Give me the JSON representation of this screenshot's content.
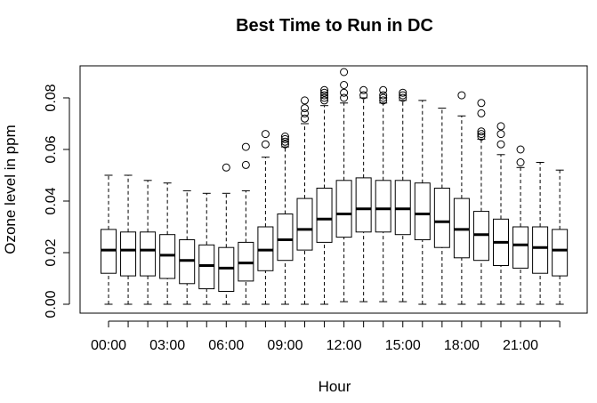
{
  "chart_data": {
    "type": "boxplot",
    "title": "Best Time to Run in DC",
    "xlabel": "Hour",
    "ylabel": "Ozone level in ppm",
    "ylim": [
      0,
      0.09
    ],
    "y_ticks": [
      0.0,
      0.02,
      0.04,
      0.06,
      0.08
    ],
    "y_tick_labels": [
      "0.00",
      "0.02",
      "0.04",
      "0.06",
      "0.08"
    ],
    "x_tick_labels": [
      {
        "hour": 0,
        "label": "00:00"
      },
      {
        "hour": 3,
        "label": "03:00"
      },
      {
        "hour": 6,
        "label": "06:00"
      },
      {
        "hour": 9,
        "label": "09:00"
      },
      {
        "hour": 12,
        "label": "12:00"
      },
      {
        "hour": 15,
        "label": "15:00"
      },
      {
        "hour": 18,
        "label": "18:00"
      },
      {
        "hour": 21,
        "label": "21:00"
      }
    ],
    "grid": false,
    "boxes": [
      {
        "hour": 0,
        "min": 0.0,
        "q1": 0.012,
        "median": 0.021,
        "q3": 0.029,
        "max": 0.05,
        "outliers": []
      },
      {
        "hour": 1,
        "min": 0.0,
        "q1": 0.011,
        "median": 0.021,
        "q3": 0.028,
        "max": 0.05,
        "outliers": []
      },
      {
        "hour": 2,
        "min": 0.0,
        "q1": 0.011,
        "median": 0.021,
        "q3": 0.028,
        "max": 0.048,
        "outliers": []
      },
      {
        "hour": 3,
        "min": 0.0,
        "q1": 0.01,
        "median": 0.019,
        "q3": 0.027,
        "max": 0.047,
        "outliers": []
      },
      {
        "hour": 4,
        "min": 0.0,
        "q1": 0.008,
        "median": 0.017,
        "q3": 0.025,
        "max": 0.044,
        "outliers": []
      },
      {
        "hour": 5,
        "min": 0.0,
        "q1": 0.006,
        "median": 0.015,
        "q3": 0.023,
        "max": 0.043,
        "outliers": []
      },
      {
        "hour": 6,
        "min": 0.0,
        "q1": 0.005,
        "median": 0.014,
        "q3": 0.022,
        "max": 0.043,
        "outliers": [
          0.053
        ]
      },
      {
        "hour": 7,
        "min": 0.0,
        "q1": 0.009,
        "median": 0.016,
        "q3": 0.024,
        "max": 0.044,
        "outliers": [
          0.054,
          0.061
        ]
      },
      {
        "hour": 8,
        "min": 0.0,
        "q1": 0.013,
        "median": 0.021,
        "q3": 0.03,
        "max": 0.057,
        "outliers": [
          0.062,
          0.066
        ]
      },
      {
        "hour": 9,
        "min": 0.0,
        "q1": 0.017,
        "median": 0.025,
        "q3": 0.035,
        "max": 0.061,
        "outliers": [
          0.062,
          0.063,
          0.064,
          0.065
        ]
      },
      {
        "hour": 10,
        "min": 0.0,
        "q1": 0.021,
        "median": 0.029,
        "q3": 0.041,
        "max": 0.07,
        "outliers": [
          0.072,
          0.074,
          0.076,
          0.079
        ]
      },
      {
        "hour": 11,
        "min": 0.0,
        "q1": 0.024,
        "median": 0.033,
        "q3": 0.045,
        "max": 0.077,
        "outliers": [
          0.079,
          0.08,
          0.081,
          0.082,
          0.083
        ]
      },
      {
        "hour": 12,
        "min": 0.001,
        "q1": 0.026,
        "median": 0.035,
        "q3": 0.048,
        "max": 0.078,
        "outliers": [
          0.08,
          0.082,
          0.085,
          0.09
        ]
      },
      {
        "hour": 13,
        "min": 0.001,
        "q1": 0.028,
        "median": 0.037,
        "q3": 0.049,
        "max": 0.08,
        "outliers": [
          0.081,
          0.083
        ]
      },
      {
        "hour": 14,
        "min": 0.001,
        "q1": 0.028,
        "median": 0.037,
        "q3": 0.048,
        "max": 0.078,
        "outliers": [
          0.079,
          0.08,
          0.081,
          0.083
        ]
      },
      {
        "hour": 15,
        "min": 0.001,
        "q1": 0.027,
        "median": 0.037,
        "q3": 0.048,
        "max": 0.079,
        "outliers": [
          0.08,
          0.081,
          0.082
        ]
      },
      {
        "hour": 16,
        "min": 0.0,
        "q1": 0.025,
        "median": 0.035,
        "q3": 0.047,
        "max": 0.079,
        "outliers": []
      },
      {
        "hour": 17,
        "min": 0.0,
        "q1": 0.022,
        "median": 0.032,
        "q3": 0.045,
        "max": 0.076,
        "outliers": []
      },
      {
        "hour": 18,
        "min": 0.0,
        "q1": 0.018,
        "median": 0.029,
        "q3": 0.041,
        "max": 0.073,
        "outliers": [
          0.081
        ]
      },
      {
        "hour": 19,
        "min": 0.0,
        "q1": 0.017,
        "median": 0.027,
        "q3": 0.036,
        "max": 0.064,
        "outliers": [
          0.065,
          0.066,
          0.067,
          0.074,
          0.078
        ]
      },
      {
        "hour": 20,
        "min": 0.0,
        "q1": 0.015,
        "median": 0.024,
        "q3": 0.033,
        "max": 0.058,
        "outliers": [
          0.062,
          0.066,
          0.069
        ]
      },
      {
        "hour": 21,
        "min": 0.0,
        "q1": 0.014,
        "median": 0.023,
        "q3": 0.03,
        "max": 0.053,
        "outliers": [
          0.055,
          0.06
        ]
      },
      {
        "hour": 22,
        "min": 0.0,
        "q1": 0.012,
        "median": 0.022,
        "q3": 0.03,
        "max": 0.055,
        "outliers": []
      },
      {
        "hour": 23,
        "min": 0.0,
        "q1": 0.011,
        "median": 0.021,
        "q3": 0.029,
        "max": 0.052,
        "outliers": []
      }
    ]
  }
}
